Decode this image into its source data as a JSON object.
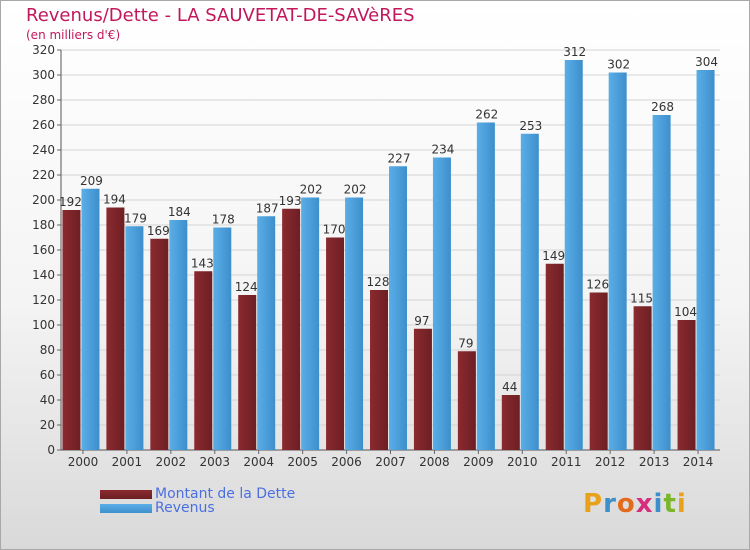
{
  "header": {
    "title": "Revenus/Dette - LA SAUVETAT-DE-SAVèRES",
    "subtitle": "(en milliers d'€)"
  },
  "colors": {
    "debt_bar": "#6d1f23",
    "debt_bar_light": "#8a2a2f",
    "revenue_bar": "#5aaee6",
    "revenue_bar_dark": "#3d8fcc",
    "title": "#c2185b",
    "legend_text": "#4b6fe0"
  },
  "legend": {
    "debt_label": "Montant de la Dette",
    "revenue_label": "Revenus"
  },
  "logo": {
    "text": "Proxiti"
  },
  "chart_data": {
    "type": "bar",
    "title": "Revenus/Dette - LA SAUVETAT-DE-SAVèRES",
    "subtitle": "(en milliers d'€)",
    "xlabel": "",
    "ylabel": "",
    "ylim": [
      0,
      320
    ],
    "yticks": [
      0,
      20,
      40,
      60,
      80,
      100,
      120,
      140,
      160,
      180,
      200,
      220,
      240,
      260,
      280,
      300,
      320
    ],
    "grid": true,
    "legend_position": "bottom-left",
    "categories": [
      "2000",
      "2001",
      "2002",
      "2003",
      "2004",
      "2005",
      "2006",
      "2007",
      "2008",
      "2009",
      "2010",
      "2011",
      "2012",
      "2013",
      "2014"
    ],
    "series": [
      {
        "name": "Montant de la Dette",
        "values": [
          192,
          194,
          169,
          143,
          124,
          193,
          170,
          128,
          97,
          79,
          44,
          149,
          126,
          115,
          104
        ]
      },
      {
        "name": "Revenus",
        "values": [
          209,
          179,
          184,
          178,
          187,
          202,
          202,
          227,
          234,
          262,
          253,
          312,
          302,
          268,
          304
        ]
      }
    ]
  }
}
